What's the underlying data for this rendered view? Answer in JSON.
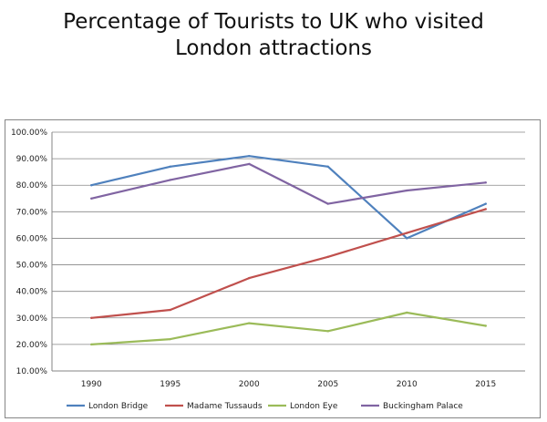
{
  "chart_data": {
    "type": "line",
    "title_line1": "Percentage of Tourists to UK who visited",
    "title_line2": "London attractions",
    "categories": [
      "1990",
      "1995",
      "2000",
      "2005",
      "2010",
      "2015"
    ],
    "ylim": [
      10,
      100
    ],
    "yticks": [
      "10.00%",
      "20.00%",
      "30.00%",
      "40.00%",
      "50.00%",
      "60.00%",
      "70.00%",
      "80.00%",
      "90.00%",
      "100.00%"
    ],
    "grid": "horizontal",
    "legend_position": "bottom",
    "series": [
      {
        "name": "London Bridge",
        "color": "#4F81BD",
        "values": [
          80,
          87,
          91,
          87,
          60,
          73
        ]
      },
      {
        "name": "Madame Tussauds",
        "color": "#C0504D",
        "values": [
          30,
          33,
          45,
          53,
          62,
          71
        ]
      },
      {
        "name": "London Eye",
        "color": "#9BBB59",
        "values": [
          20,
          22,
          28,
          25,
          32,
          27
        ]
      },
      {
        "name": "Buckingham Palace",
        "color": "#8064A2",
        "values": [
          75,
          82,
          88,
          73,
          78,
          81
        ]
      }
    ]
  }
}
